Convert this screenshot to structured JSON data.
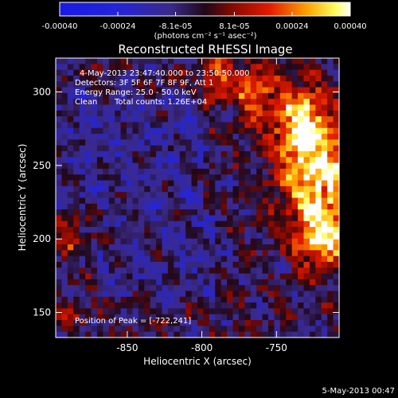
{
  "chart_data": {
    "type": "heatmap",
    "title": "Reconstructed RHESSI Image",
    "xlabel": "Heliocentric X (arcsec)",
    "ylabel": "Heliocentric Y (arcsec)",
    "xlim": [
      -898,
      -708
    ],
    "ylim": [
      133,
      323
    ],
    "x_ticks": [
      -850,
      -800,
      -750
    ],
    "y_ticks": [
      150,
      200,
      250,
      300
    ],
    "grid": false,
    "colorbar": {
      "position": "top",
      "min": -0.0004,
      "max": 0.0004,
      "tick_values": [
        -0.0004,
        -0.00024,
        -8.1e-05,
        8.1e-05,
        0.00024,
        0.0004
      ],
      "tick_labels": [
        "-0.00040",
        "-0.00024",
        "-8.1e-05",
        "8.1e-05",
        "0.00024",
        "0.00040"
      ],
      "units": "(photons cm⁻² s⁻¹ asec⁻²)"
    },
    "annotations": {
      "time_range": "4-May-2013 23:47:40.000 to 23:50:50.000",
      "detectors": "Detectors: 3F 5F 6F 7F 8F 9F, Att 1",
      "energy_range": "Energy Range: 25.0 - 50.0 keV",
      "method": "Clean",
      "total_counts": "Total counts: 1.26E+04",
      "peak": "Position of Peak = [-722,241]"
    },
    "peak_position": [
      -722,
      241
    ],
    "emission_regions": [
      {
        "x": -722,
        "y": 241,
        "rx": 25,
        "ry": 40,
        "value": 0.0004
      },
      {
        "x": -735,
        "y": 280,
        "rx": 18,
        "ry": 25,
        "value": 0.00032
      },
      {
        "x": -718,
        "y": 200,
        "rx": 15,
        "ry": 20,
        "value": 0.0003
      },
      {
        "x": -765,
        "y": 300,
        "rx": 12,
        "ry": 20,
        "value": 0.00026
      },
      {
        "x": -790,
        "y": 308,
        "rx": 12,
        "ry": 14,
        "value": 0.00022
      },
      {
        "x": -890,
        "y": 202,
        "rx": 10,
        "ry": 10,
        "value": 0.00022
      },
      {
        "x": -890,
        "y": 150,
        "rx": 8,
        "ry": 8,
        "value": 0.00018
      }
    ],
    "footer_date": "5-May-2013 00:47"
  }
}
